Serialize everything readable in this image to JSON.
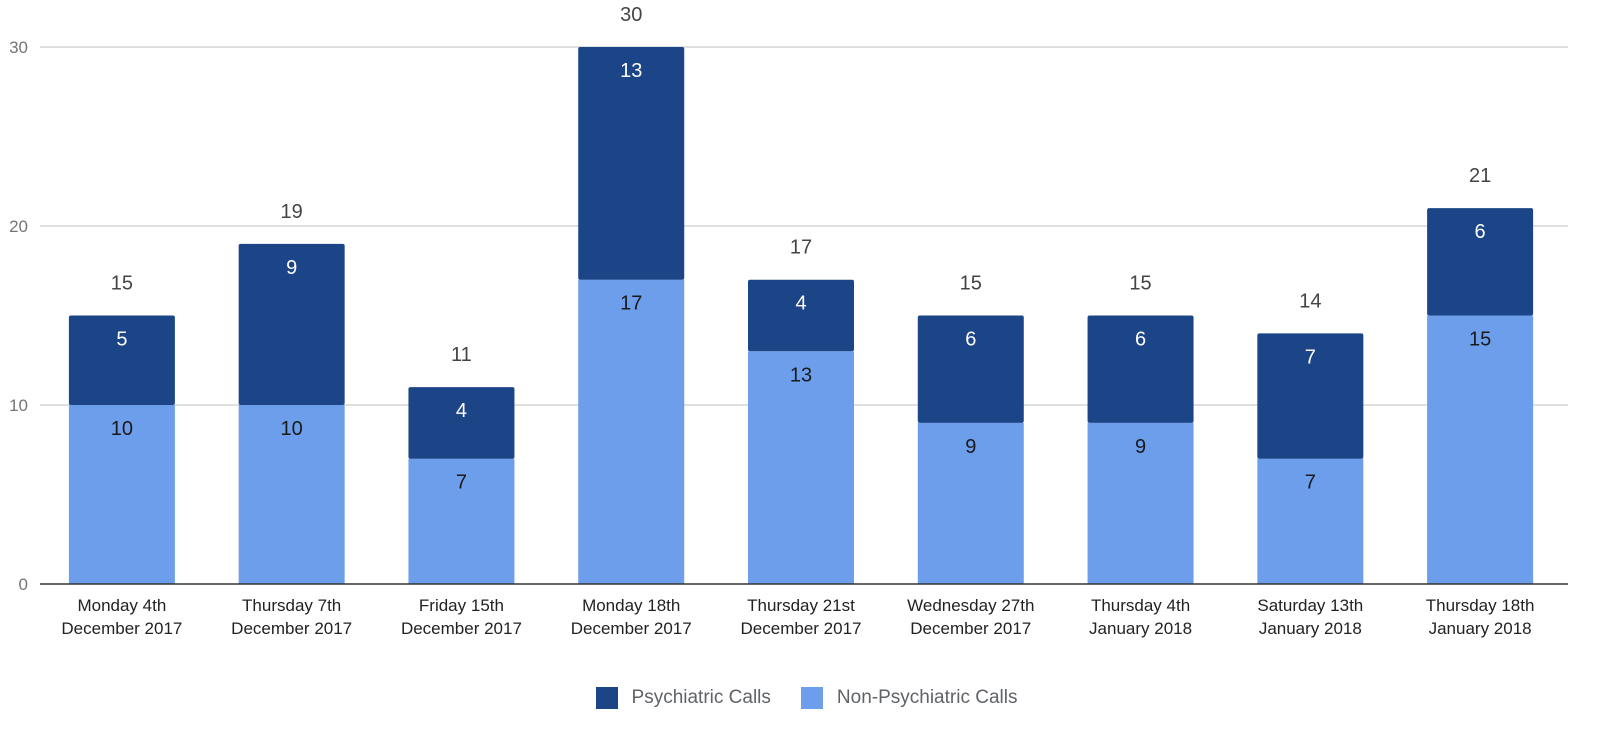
{
  "chart_data": {
    "type": "bar",
    "stacked": true,
    "categories": [
      [
        "Monday 4th",
        "December 2017"
      ],
      [
        "Thursday 7th",
        "December 2017"
      ],
      [
        "Friday 15th",
        "December 2017"
      ],
      [
        "Monday 18th",
        "December 2017"
      ],
      [
        "Thursday 21st",
        "December 2017"
      ],
      [
        "Wednesday 27th",
        "December 2017"
      ],
      [
        "Thursday 4th",
        "January 2018"
      ],
      [
        "Saturday 13th",
        "January 2018"
      ],
      [
        "Thursday 18th",
        "January 2018"
      ]
    ],
    "series": [
      {
        "name": "Non-Psychiatric Calls",
        "color": "#6d9eeb",
        "values": [
          10,
          10,
          7,
          17,
          13,
          9,
          9,
          7,
          15
        ]
      },
      {
        "name": "Psychiatric Calls",
        "color": "#1c4587",
        "values": [
          5,
          9,
          4,
          13,
          4,
          6,
          6,
          7,
          6
        ]
      }
    ],
    "totals": [
      15,
      19,
      11,
      30,
      17,
      15,
      15,
      14,
      21
    ],
    "title": "",
    "xlabel": "",
    "ylabel": "",
    "ylim": [
      0,
      30
    ],
    "yticks": [
      0,
      10,
      20,
      30
    ],
    "grid": true,
    "legend_position": "bottom",
    "legend_order": [
      "Psychiatric Calls",
      "Non-Psychiatric Calls"
    ]
  }
}
